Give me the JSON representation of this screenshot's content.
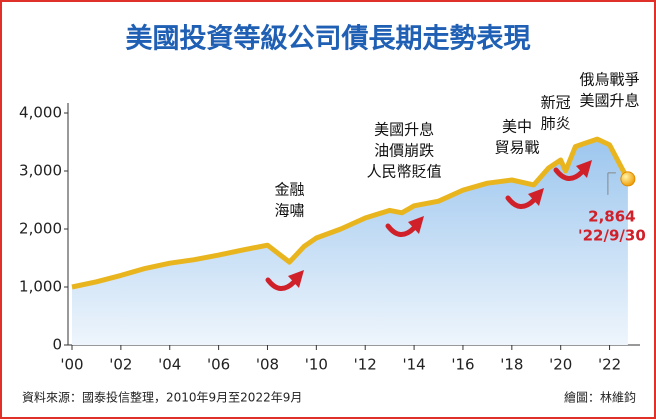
{
  "chart_data": {
    "type": "line",
    "title": "美國投資等級公司債長期走勢表現",
    "source": "資料來源：國泰投信整理，2010年9月至2022年9月",
    "credit": "繪圖：林維鈞",
    "xlim": [
      2000,
      2023
    ],
    "xticks": [
      {
        "value": 2000,
        "label": "'00"
      },
      {
        "value": 2002,
        "label": "'02"
      },
      {
        "value": 2004,
        "label": "'04"
      },
      {
        "value": 2006,
        "label": "'06"
      },
      {
        "value": 2008,
        "label": "'08"
      },
      {
        "value": 2010,
        "label": "'10"
      },
      {
        "value": 2012,
        "label": "'12"
      },
      {
        "value": 2014,
        "label": "'14"
      },
      {
        "value": 2016,
        "label": "'16"
      },
      {
        "value": 2018,
        "label": "'18"
      },
      {
        "value": 2020,
        "label": "'20"
      },
      {
        "value": 2022,
        "label": "'22"
      }
    ],
    "ylim": [
      0,
      4000
    ],
    "yticks": [
      0,
      {
        "value": 1000,
        "label": "1,000"
      },
      {
        "value": 2000,
        "label": "2,000"
      },
      {
        "value": 3000,
        "label": "3,000"
      },
      {
        "value": 4000,
        "label": "4,000"
      }
    ],
    "series": [
      {
        "color": "#e9b51f",
        "x": [
          2000,
          2001,
          2002,
          2003,
          2004,
          2005,
          2006,
          2007,
          2008,
          2008.9,
          2009.5,
          2010,
          2011,
          2012,
          2013,
          2013.5,
          2014,
          2015,
          2016,
          2017,
          2018,
          2018.9,
          2019.5,
          2020,
          2020.2,
          2020.6,
          2021,
          2021.5,
          2022,
          2022.5,
          2022.75
        ],
        "values": [
          1000,
          1090,
          1200,
          1320,
          1410,
          1470,
          1550,
          1640,
          1720,
          1430,
          1700,
          1845,
          2000,
          2190,
          2320,
          2280,
          2400,
          2480,
          2670,
          2790,
          2845,
          2760,
          3050,
          3190,
          3000,
          3420,
          3480,
          3550,
          3450,
          3050,
          2864
        ],
        "value_labels": [
          null,
          null,
          null,
          null,
          null,
          null,
          null,
          null,
          null,
          null,
          null,
          null,
          null,
          null,
          null,
          null,
          null,
          null,
          null,
          null,
          null,
          null,
          null,
          null,
          null,
          null,
          null,
          null,
          null,
          null,
          "2,864"
        ]
      }
    ],
    "end_date": "'22/9/30",
    "annotations": [
      {
        "lines": [
          "金融",
          "海嘯"
        ],
        "x": 2008.9
      },
      {
        "lines": [
          "美國升息",
          "油價崩跌",
          "人民幣貶值"
        ],
        "x": 2014
      },
      {
        "lines": [
          "美中",
          "貿易戰"
        ],
        "x": 2018.5
      },
      {
        "lines": [
          "新冠",
          "肺炎"
        ],
        "x": 2020.2
      },
      {
        "lines": [
          "俄烏戰爭",
          "美國升息"
        ],
        "x": 2022
      }
    ]
  }
}
